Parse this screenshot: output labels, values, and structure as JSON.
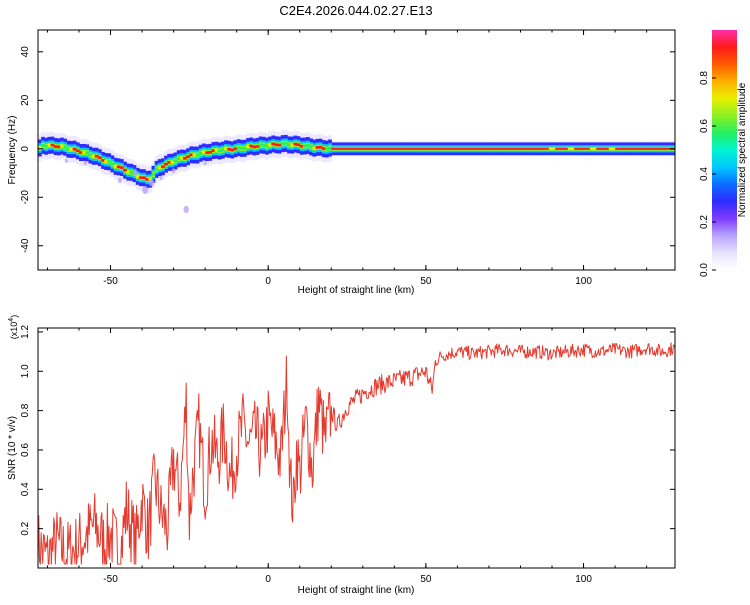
{
  "title": "C2E4.2026.044.02.27.E13",
  "colors": {
    "series_line": "#e53a2e",
    "frame": "#000000",
    "rainbow": [
      "#ffffff",
      "#e9e3ff",
      "#b9a3ff",
      "#7f3cff",
      "#2f2cff",
      "#0b6cff",
      "#00c8ff",
      "#00f5d0",
      "#25f060",
      "#8cf021",
      "#e8f000",
      "#ffb000",
      "#ff5a00",
      "#ff1a1a",
      "#ff2ea8"
    ]
  },
  "chart_data": [
    {
      "type": "heatmap",
      "name": "spectrogram",
      "xlabel": "Height of straight line (km)",
      "ylabel": "Frequency (Hz)",
      "xlim": [
        -73,
        129
      ],
      "ylim": [
        -50,
        49
      ],
      "xticks": [
        -50,
        0,
        50,
        100
      ],
      "yticks": [
        -40,
        -20,
        0,
        20,
        40
      ],
      "grid": false,
      "colorbar": {
        "label": "Normalized spectral amplitude",
        "range": [
          0,
          1
        ],
        "ticks": [
          0.0,
          0.2,
          0.4,
          0.6,
          0.8
        ]
      },
      "ridge": [
        {
          "x": -72,
          "f": 1.5
        },
        {
          "x": -66,
          "f": 1
        },
        {
          "x": -60,
          "f": -1
        },
        {
          "x": -55,
          "f": -3
        },
        {
          "x": -50,
          "f": -6
        },
        {
          "x": -45,
          "f": -9
        },
        {
          "x": -40,
          "f": -12
        },
        {
          "x": -38,
          "f": -13
        },
        {
          "x": -35,
          "f": -8
        },
        {
          "x": -30,
          "f": -5
        },
        {
          "x": -25,
          "f": -3
        },
        {
          "x": -20,
          "f": -1.5
        },
        {
          "x": -15,
          "f": -0.5
        },
        {
          "x": -10,
          "f": 0
        },
        {
          "x": -5,
          "f": 1
        },
        {
          "x": 0,
          "f": 1.5
        },
        {
          "x": 5,
          "f": 2
        },
        {
          "x": 10,
          "f": 1.5
        },
        {
          "x": 15,
          "f": 0.5
        },
        {
          "x": 20,
          "f": 0
        },
        {
          "x": 129,
          "f": 0
        }
      ]
    },
    {
      "type": "line",
      "name": "snr",
      "xlabel": "Height of straight line (km)",
      "ylabel": "SNR (10 * v/v)",
      "multiplier_label": "(x10",
      "multiplier_exp": "4",
      "multiplier_close": ")",
      "xlim": [
        -73,
        129
      ],
      "ylim": [
        0,
        1.22
      ],
      "xticks": [
        -50,
        0,
        50,
        100
      ],
      "yticks": [
        0.2,
        0.4,
        0.6,
        0.8,
        1.0,
        1.2
      ],
      "grid": false,
      "series": [
        {
          "name": "SNR",
          "x": [
            -73,
            -70,
            -67,
            -64,
            -61,
            -58,
            -55,
            -52,
            -50,
            -47,
            -45,
            -42,
            -40,
            -38,
            -36,
            -34,
            -32,
            -30,
            -28,
            -26,
            -25,
            -24,
            -22,
            -20,
            -18,
            -16,
            -14,
            -12,
            -10,
            -8,
            -6,
            -4,
            -2,
            0,
            2,
            4,
            6,
            7,
            8,
            9,
            10,
            12,
            14,
            16,
            18,
            20,
            22,
            25,
            28,
            31,
            35,
            40,
            45,
            50,
            52,
            53,
            55,
            60,
            65,
            70,
            75,
            80,
            85,
            90,
            95,
            100,
            105,
            110,
            115,
            120,
            125,
            129
          ],
          "values": [
            0.12,
            0.05,
            0.13,
            0.07,
            0.1,
            0.16,
            0.22,
            0.12,
            0.18,
            0.06,
            0.3,
            0.12,
            0.35,
            0.18,
            0.45,
            0.28,
            0.2,
            0.55,
            0.35,
            0.85,
            0.25,
            0.45,
            0.72,
            0.4,
            0.65,
            0.55,
            0.7,
            0.45,
            0.6,
            0.72,
            0.62,
            0.68,
            0.58,
            0.75,
            0.65,
            0.55,
            0.98,
            0.45,
            0.3,
            0.6,
            0.48,
            0.75,
            0.5,
            0.85,
            0.65,
            0.8,
            0.72,
            0.82,
            0.86,
            0.9,
            0.93,
            0.95,
            0.97,
            1.0,
            0.9,
            1.05,
            1.08,
            1.1,
            1.09,
            1.1,
            1.11,
            1.1,
            1.1,
            1.09,
            1.1,
            1.11,
            1.1,
            1.11,
            1.1,
            1.12,
            1.1,
            1.12
          ]
        }
      ]
    }
  ]
}
